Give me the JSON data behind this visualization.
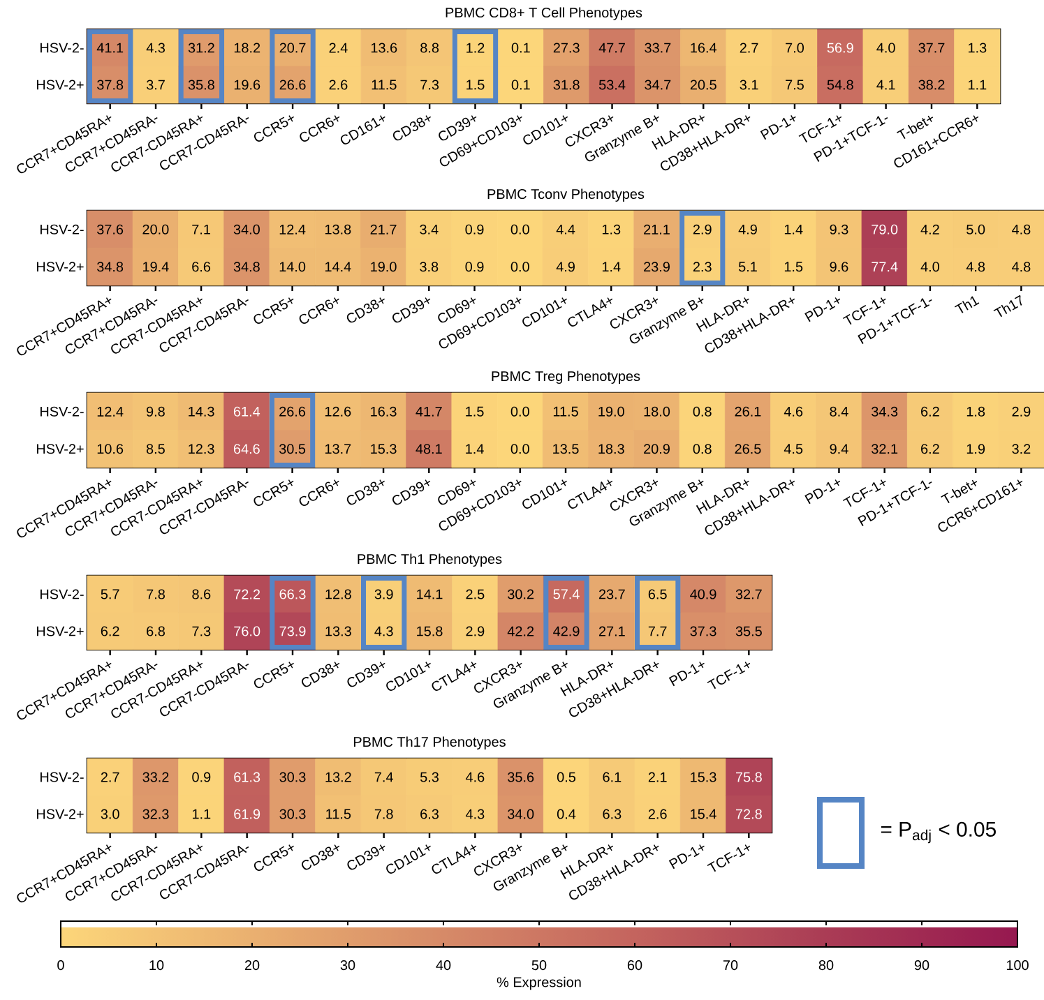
{
  "chart_data": [
    {
      "type": "heatmap",
      "title": "PBMC CD8+ T Cell Phenotypes",
      "categories": [
        "CCR7+CD45RA+",
        "CCR7+CD45RA-",
        "CCR7-CD45RA+",
        "CCR7-CD45RA-",
        "CCR5+",
        "CCR6+",
        "CD161+",
        "CD38+",
        "CD39+",
        "CD69+CD103+",
        "CD101+",
        "CXCR3+",
        "Granzyme B+",
        "HLA-DR+",
        "CD38+HLA-DR+",
        "PD-1+",
        "TCF-1+",
        "PD-1+TCF-1-",
        "T-bet+",
        "CD161+CCR6+"
      ],
      "y_categories": [
        "HSV-2-",
        "HSV-2+"
      ],
      "cells": [
        [
          41.1,
          4.3,
          31.2,
          18.2,
          20.7,
          2.4,
          13.6,
          8.8,
          1.2,
          0.1,
          27.3,
          47.7,
          33.7,
          16.4,
          2.7,
          7.0,
          56.9,
          4.0,
          37.7,
          1.3
        ],
        [
          37.8,
          3.7,
          35.8,
          19.6,
          26.6,
          2.6,
          11.5,
          7.3,
          1.5,
          0.1,
          31.8,
          53.4,
          34.7,
          20.5,
          3.1,
          7.5,
          54.8,
          4.1,
          38.2,
          1.1
        ]
      ],
      "cell_labels": [
        [
          "41.1",
          "4.3",
          "31.2",
          "18.2",
          "20.7",
          "2.4",
          "13.6",
          "8.8",
          "1.2",
          "0.1",
          "27.3",
          "47.7",
          "33.7",
          "16.4",
          "2.7",
          "7.0",
          "56.9",
          "4.0",
          "37.7",
          "1.3"
        ],
        [
          "37.8",
          "3.7",
          "35.8",
          "19.6",
          "26.6",
          "2.6",
          "11.5",
          "7.3",
          "1.5",
          "0.1",
          "31.8",
          "53.4",
          "34.7",
          "20.5",
          "3.1",
          "7.5",
          "54.8",
          "4.1",
          "38.2",
          "1.1"
        ]
      ]
    },
    {
      "type": "heatmap",
      "title": "PBMC Tconv Phenotypes",
      "categories": [
        "CCR7+CD45RA+",
        "CCR7+CD45RA-",
        "CCR7-CD45RA+",
        "CCR7-CD45RA-",
        "CCR5+",
        "CCR6+",
        "CD38+",
        "CD39+",
        "CD69+",
        "CD69+CD103+",
        "CD101+",
        "CTLA4+",
        "CXCR3+",
        "Granzyme B+",
        "HLA-DR+",
        "CD38+HLA-DR+",
        "PD-1+",
        "TCF-1+",
        "PD-1+TCF-1-",
        "Th1",
        "Th17"
      ],
      "y_categories": [
        "HSV-2-",
        "HSV-2+"
      ],
      "cells": [
        [
          37.6,
          20.0,
          7.1,
          34.0,
          12.4,
          13.8,
          21.7,
          3.4,
          0.9,
          0.0,
          4.4,
          1.3,
          21.1,
          2.9,
          4.9,
          1.4,
          9.3,
          79.0,
          4.2,
          5.0,
          4.8
        ],
        [
          34.8,
          19.4,
          6.6,
          34.8,
          14.0,
          14.4,
          19.0,
          3.8,
          0.9,
          0.0,
          4.9,
          1.4,
          23.9,
          2.3,
          5.1,
          1.5,
          9.6,
          77.4,
          4.0,
          4.8,
          4.8
        ]
      ],
      "cell_labels": [
        [
          "37.6",
          "20.0",
          "7.1",
          "34.0",
          "12.4",
          "13.8",
          "21.7",
          "3.4",
          "0.9",
          "0.0",
          "4.4",
          "1.3",
          "21.1",
          "2.9",
          "4.9",
          "1.4",
          "9.3",
          "79.0",
          "4.2",
          "5.0",
          "4.8"
        ],
        [
          "34.8",
          "19.4",
          "6.6",
          "34.8",
          "14.0",
          "14.4",
          "19.0",
          "3.8",
          "0.9",
          "0.0",
          "4.9",
          "1.4",
          "23.9",
          "2.3",
          "5.1",
          "1.5",
          "9.6",
          "77.4",
          "4.0",
          "4.8",
          "4.8"
        ]
      ]
    },
    {
      "type": "heatmap",
      "title": "PBMC Treg Phenotypes",
      "categories": [
        "CCR7+CD45RA+",
        "CCR7+CD45RA-",
        "CCR7-CD45RA+",
        "CCR7-CD45RA-",
        "CCR5+",
        "CCR6+",
        "CD38+",
        "CD39+",
        "CD69+",
        "CD69+CD103+",
        "CD101+",
        "CTLA4+",
        "CXCR3+",
        "Granzyme B+",
        "HLA-DR+",
        "CD38+HLA-DR+",
        "PD-1+",
        "TCF-1+",
        "PD-1+TCF-1-",
        "T-bet+",
        "CCR6+CD161+"
      ],
      "y_categories": [
        "HSV-2-",
        "HSV-2+"
      ],
      "cells": [
        [
          12.4,
          9.8,
          14.3,
          61.4,
          26.6,
          12.6,
          16.3,
          41.7,
          1.5,
          0.0,
          11.5,
          19.0,
          18.0,
          0.8,
          26.1,
          4.6,
          8.4,
          34.3,
          6.2,
          1.8,
          2.9
        ],
        [
          10.6,
          8.5,
          12.3,
          64.6,
          30.5,
          13.7,
          15.3,
          48.1,
          1.4,
          0.0,
          13.5,
          18.3,
          20.9,
          0.8,
          26.5,
          4.5,
          9.4,
          32.1,
          6.2,
          1.9,
          3.2
        ]
      ],
      "cell_labels": [
        [
          "12.4",
          "9.8",
          "14.3",
          "61.4",
          "26.6",
          "12.6",
          "16.3",
          "41.7",
          "1.5",
          "0.0",
          "11.5",
          "19.0",
          "18.0",
          "0.8",
          "26.1",
          "4.6",
          "8.4",
          "34.3",
          "6.2",
          "1.8",
          "2.9"
        ],
        [
          "10.6",
          "8.5",
          "12.3",
          "64.6",
          "30.5",
          "13.7",
          "15.3",
          "48.1",
          "1.4",
          "0.0",
          "13.5",
          "18.3",
          "20.9",
          "0.8",
          "26.5",
          "4.5",
          "9.4",
          "32.1",
          "6.2",
          "1.9",
          "3.2"
        ]
      ]
    },
    {
      "type": "heatmap",
      "title": "PBMC Th1 Phenotypes",
      "categories": [
        "CCR7+CD45RA+",
        "CCR7+CD45RA-",
        "CCR7-CD45RA+",
        "CCR7-CD45RA-",
        "CCR5+",
        "CD38+",
        "CD39+",
        "CD101+",
        "CTLA4+",
        "CXCR3+",
        "Granzyme B+",
        "HLA-DR+",
        "CD38+HLA-DR+",
        "PD-1+",
        "TCF-1+"
      ],
      "y_categories": [
        "HSV-2-",
        "HSV-2+"
      ],
      "cells": [
        [
          5.7,
          7.8,
          8.6,
          72.2,
          66.3,
          12.8,
          3.9,
          14.1,
          2.5,
          30.2,
          57.4,
          23.7,
          6.5,
          40.9,
          32.7
        ],
        [
          6.2,
          6.8,
          7.3,
          76.0,
          73.9,
          13.3,
          4.3,
          15.8,
          2.9,
          42.2,
          42.9,
          27.1,
          7.7,
          37.3,
          35.5
        ]
      ],
      "cell_labels": [
        [
          "5.7",
          "7.8",
          "8.6",
          "72.2",
          "66.3",
          "12.8",
          "3.9",
          "14.1",
          "2.5",
          "30.2",
          "57.4",
          "23.7",
          "6.5",
          "40.9",
          "32.7"
        ],
        [
          "6.2",
          "6.8",
          "7.3",
          "76.0",
          "73.9",
          "13.3",
          "4.3",
          "15.8",
          "2.9",
          "42.2",
          "42.9",
          "27.1",
          "7.7",
          "37.3",
          "35.5"
        ]
      ]
    },
    {
      "type": "heatmap",
      "title": "PBMC Th17 Phenotypes",
      "categories": [
        "CCR7+CD45RA+",
        "CCR7+CD45RA-",
        "CCR7-CD45RA+",
        "CCR7-CD45RA-",
        "CCR5+",
        "CD38+",
        "CD39+",
        "CD101+",
        "CTLA4+",
        "CXCR3+",
        "Granzyme B+",
        "HLA-DR+",
        "CD38+HLA-DR+",
        "PD-1+",
        "TCF-1+"
      ],
      "y_categories": [
        "HSV-2-",
        "HSV-2+"
      ],
      "cells": [
        [
          2.7,
          33.2,
          0.9,
          61.3,
          30.3,
          13.2,
          7.4,
          5.3,
          4.6,
          35.6,
          0.5,
          6.1,
          2.1,
          15.3,
          75.8
        ],
        [
          3.0,
          32.3,
          1.1,
          61.9,
          30.3,
          11.5,
          7.8,
          6.3,
          4.3,
          34.0,
          0.4,
          6.3,
          2.6,
          15.4,
          72.8
        ]
      ],
      "cell_labels": [
        [
          "2.7",
          "33.2",
          "0.9",
          "61.3",
          "30.3",
          "13.2",
          "7.4",
          "5.3",
          "4.6",
          "35.6",
          "0.5",
          "6.1",
          "2.1",
          "15.3",
          "75.8"
        ],
        [
          "3.0",
          "32.3",
          "1.1",
          "61.9",
          "30.3",
          "11.5",
          "7.8",
          "6.3",
          "4.3",
          "34.0",
          "0.4",
          "6.3",
          "2.6",
          "15.4",
          "72.8"
        ]
      ],
      "clim": [
        0,
        100
      ],
      "clabel": "% Expression",
      "cticks": [
        0,
        10,
        20,
        30,
        40,
        50,
        60,
        70,
        80,
        90,
        100
      ],
      "annotations": [
        "= P$_{adj}$ < 0.05"
      ]
    }
  ]
}
